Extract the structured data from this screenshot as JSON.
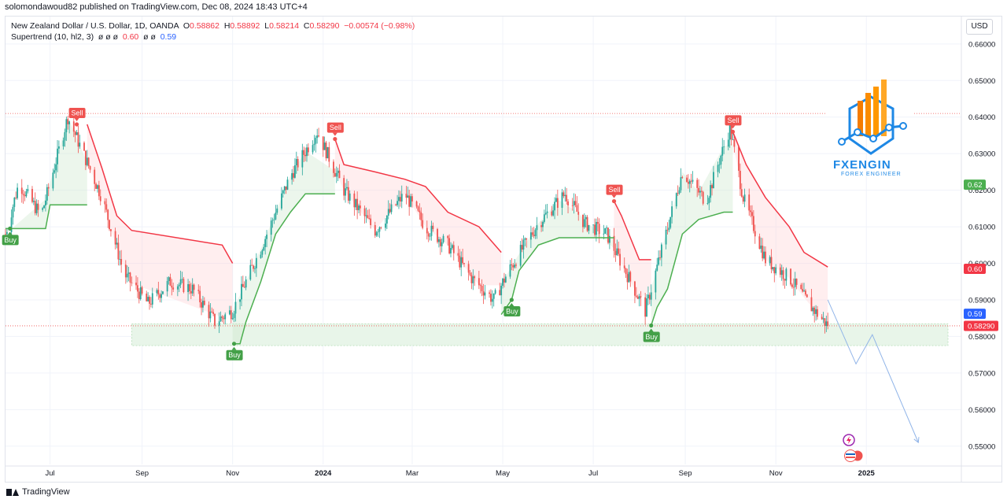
{
  "header": {
    "published_line": "solomondawoud82 published on TradingView.com, Dec 08, 2024 18:43 UTC+4"
  },
  "legend": {
    "symbol": "New Zealand Dollar / U.S. Dollar, 1D, OANDA",
    "o_label": "O",
    "o_value": "0.58862",
    "h_label": "H",
    "h_value": "0.58892",
    "l_label": "L",
    "l_value": "0.58214",
    "c_label": "C",
    "c_value": "0.58290",
    "change": "−0.00574 (−0.98%)",
    "indicator": "Supertrend (10, hl2, 3)",
    "indicator_nulls": "ø ø ø",
    "indicator_val1": "0.60",
    "indicator_nulls2": "ø ø",
    "indicator_val2": "0.59"
  },
  "currency_button": "USD",
  "branding": {
    "footer": "TradingView",
    "logo_name": "FXENGIN",
    "logo_sub": "FOREX ENGINEER"
  },
  "colors": {
    "up": "#26a69a",
    "down": "#ef5350",
    "supertrend_up": "#4caf50",
    "supertrend_down": "#f23645",
    "zone": "#e8f5e9",
    "projection": "#90b4e8"
  },
  "chart_data": {
    "type": "candlestick",
    "symbol": "NZDUSD",
    "timeframe": "1D",
    "ylim": [
      0.545,
      0.6675
    ],
    "y_ticks": [
      "0.66000",
      "0.65000",
      "0.64000",
      "0.63000",
      "0.62000",
      "0.61000",
      "0.60000",
      "0.59000",
      "0.58000",
      "0.57000",
      "0.56000",
      "0.55000"
    ],
    "x_ticks": [
      {
        "label": "Jul",
        "date": "2023-07-01",
        "bold": false
      },
      {
        "label": "Sep",
        "date": "2023-09-01",
        "bold": false
      },
      {
        "label": "Nov",
        "date": "2023-11-01",
        "bold": false
      },
      {
        "label": "2024",
        "date": "2024-01-01",
        "bold": true
      },
      {
        "label": "Mar",
        "date": "2024-03-01",
        "bold": false
      },
      {
        "label": "May",
        "date": "2024-05-01",
        "bold": false
      },
      {
        "label": "Jul",
        "date": "2024-07-01",
        "bold": false
      },
      {
        "label": "Sep",
        "date": "2024-09-01",
        "bold": false
      },
      {
        "label": "Nov",
        "date": "2024-11-01",
        "bold": false
      },
      {
        "label": "2025",
        "date": "2025-01-01",
        "bold": true
      }
    ],
    "price_path": [
      [
        "2023-06-01",
        0.608
      ],
      [
        "2023-06-10",
        0.622
      ],
      [
        "2023-06-25",
        0.613
      ],
      [
        "2023-07-13",
        0.64
      ],
      [
        "2023-08-05",
        0.618
      ],
      [
        "2023-08-20",
        0.597
      ],
      [
        "2023-09-05",
        0.589
      ],
      [
        "2023-09-20",
        0.595
      ],
      [
        "2023-10-05",
        0.593
      ],
      [
        "2023-10-20",
        0.584
      ],
      [
        "2023-11-01",
        0.587
      ],
      [
        "2023-11-20",
        0.604
      ],
      [
        "2023-12-10",
        0.624
      ],
      [
        "2023-12-28",
        0.636
      ],
      [
        "2024-01-15",
        0.62
      ],
      [
        "2024-02-05",
        0.609
      ],
      [
        "2024-02-25",
        0.619
      ],
      [
        "2024-03-10",
        0.61
      ],
      [
        "2024-03-25",
        0.605
      ],
      [
        "2024-04-10",
        0.596
      ],
      [
        "2024-04-25",
        0.59
      ],
      [
        "2024-05-05",
        0.598
      ],
      [
        "2024-05-25",
        0.611
      ],
      [
        "2024-06-12",
        0.619
      ],
      [
        "2024-06-25",
        0.611
      ],
      [
        "2024-07-10",
        0.608
      ],
      [
        "2024-07-25",
        0.596
      ],
      [
        "2024-08-05",
        0.587
      ],
      [
        "2024-08-15",
        0.602
      ],
      [
        "2024-08-30",
        0.625
      ],
      [
        "2024-09-15",
        0.617
      ],
      [
        "2024-10-01",
        0.637
      ],
      [
        "2024-10-10",
        0.618
      ],
      [
        "2024-10-25",
        0.601
      ],
      [
        "2024-11-10",
        0.596
      ],
      [
        "2024-11-25",
        0.588
      ],
      [
        "2024-12-06",
        0.5829
      ]
    ],
    "supertrend": {
      "up_segments": [
        [
          [
            "2023-06-01",
            0.6095
          ],
          [
            "2023-06-28",
            0.6095
          ],
          [
            "2023-07-01",
            0.616
          ],
          [
            "2023-07-13",
            0.616
          ],
          [
            "2023-07-26",
            0.616
          ]
        ],
        [
          [
            "2023-11-01",
            0.578
          ],
          [
            "2023-11-06",
            0.578
          ],
          [
            "2023-11-10",
            0.584
          ],
          [
            "2023-11-20",
            0.595
          ],
          [
            "2023-11-30",
            0.608
          ],
          [
            "2023-12-10",
            0.614
          ],
          [
            "2023-12-20",
            0.619
          ],
          [
            "2024-01-09",
            0.619
          ]
        ],
        [
          [
            "2024-04-30",
            0.586
          ],
          [
            "2024-05-07",
            0.59
          ],
          [
            "2024-05-12",
            0.598
          ],
          [
            "2024-05-25",
            0.605
          ],
          [
            "2024-06-08",
            0.607
          ],
          [
            "2024-06-20",
            0.607
          ],
          [
            "2024-07-15",
            0.607
          ]
        ],
        [
          [
            "2024-08-09",
            0.583
          ],
          [
            "2024-08-13",
            0.588
          ],
          [
            "2024-08-20",
            0.593
          ],
          [
            "2024-08-30",
            0.608
          ],
          [
            "2024-09-10",
            0.612
          ],
          [
            "2024-09-27",
            0.614
          ],
          [
            "2024-10-03",
            0.614
          ]
        ]
      ],
      "down_segments": [
        [
          [
            "2023-07-26",
            0.638
          ],
          [
            "2023-08-05",
            0.626
          ],
          [
            "2023-08-15",
            0.613
          ],
          [
            "2023-08-25",
            0.609
          ],
          [
            "2023-10-25",
            0.605
          ],
          [
            "2023-11-01",
            0.6
          ]
        ],
        [
          [
            "2024-01-09",
            0.634
          ],
          [
            "2024-01-15",
            0.627
          ],
          [
            "2024-02-05",
            0.625
          ],
          [
            "2024-02-25",
            0.623
          ],
          [
            "2024-03-10",
            0.621
          ],
          [
            "2024-03-25",
            0.614
          ],
          [
            "2024-04-15",
            0.61
          ],
          [
            "2024-04-30",
            0.603
          ]
        ],
        [
          [
            "2024-07-15",
            0.617
          ],
          [
            "2024-07-20",
            0.613
          ],
          [
            "2024-08-01",
            0.601
          ],
          [
            "2024-08-09",
            0.601
          ]
        ],
        [
          [
            "2024-10-03",
            0.636
          ],
          [
            "2024-10-12",
            0.627
          ],
          [
            "2024-10-25",
            0.618
          ],
          [
            "2024-11-10",
            0.61
          ],
          [
            "2024-11-20",
            0.603
          ],
          [
            "2024-12-06",
            0.599
          ]
        ]
      ]
    },
    "signals": [
      {
        "label": "Buy",
        "date": "2023-06-04",
        "price": 0.6095,
        "side": "buy"
      },
      {
        "label": "Sell",
        "date": "2023-07-19",
        "price": 0.638,
        "side": "sell"
      },
      {
        "label": "Buy",
        "date": "2023-11-02",
        "price": 0.578,
        "side": "buy"
      },
      {
        "label": "Sell",
        "date": "2024-01-09",
        "price": 0.634,
        "side": "sell"
      },
      {
        "label": "Buy",
        "date": "2024-05-07",
        "price": 0.59,
        "side": "buy"
      },
      {
        "label": "Sell",
        "date": "2024-07-15",
        "price": 0.617,
        "side": "sell"
      },
      {
        "label": "Buy",
        "date": "2024-08-09",
        "price": 0.583,
        "side": "buy"
      },
      {
        "label": "Sell",
        "date": "2024-10-03",
        "price": 0.636,
        "side": "sell"
      }
    ],
    "support_zone": {
      "from": "2023-08-25",
      "to": "2025-02-25",
      "low": 0.5775,
      "high": 0.5835
    },
    "resistance_line": 0.641,
    "last_price_line": 0.5829,
    "projection": [
      [
        "2024-12-06",
        0.59
      ],
      [
        "2024-12-25",
        0.5725
      ],
      [
        "2025-01-05",
        0.5805
      ],
      [
        "2025-02-05",
        0.551
      ]
    ],
    "price_labels": [
      {
        "text": "0.62",
        "price": 0.6215,
        "color": "#4caf50"
      },
      {
        "text": "0.60",
        "price": 0.5985,
        "color": "#f23645"
      },
      {
        "text": "0.59",
        "price": 0.5862,
        "color": "#2962ff"
      },
      {
        "text": "0.58290",
        "price": 0.5829,
        "color": "#f23645"
      }
    ]
  }
}
